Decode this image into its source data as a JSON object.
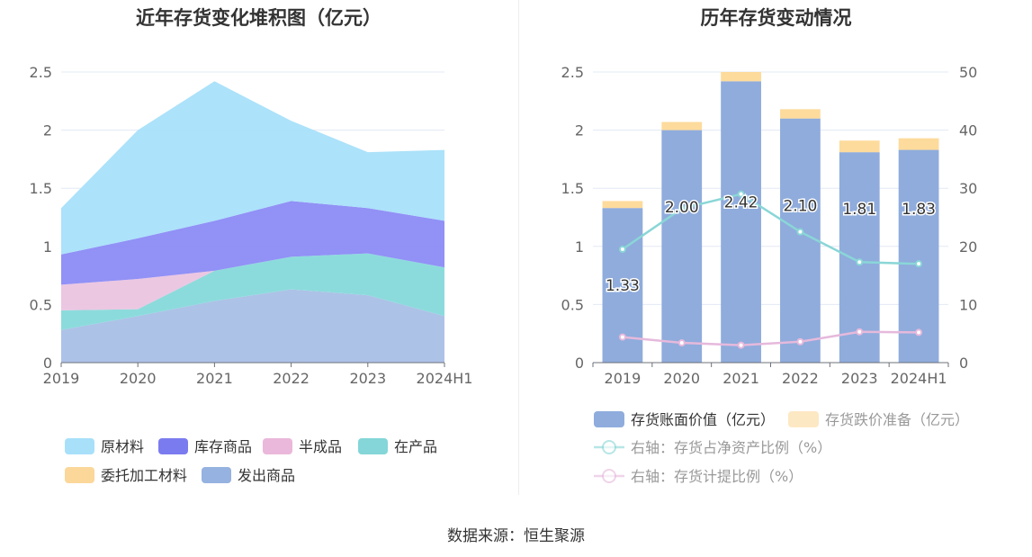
{
  "footer": {
    "source": "数据来源：恒生聚源"
  },
  "chart_data": [
    {
      "type": "area",
      "stacked": true,
      "title": "近年存货变化堆积图（亿元）",
      "categories": [
        "2019",
        "2020",
        "2021",
        "2022",
        "2023",
        "2024H1"
      ],
      "yticks": [
        "0",
        "0.5",
        "1",
        "1.5",
        "2",
        "2.5"
      ],
      "ylim": [
        0,
        2.5
      ],
      "grid": true,
      "legend_position": "bottom",
      "series": [
        {
          "name": "发出商品",
          "color": "#A9BFE6",
          "values": [
            0.28,
            0.4,
            0.53,
            0.63,
            0.58,
            0.4
          ]
        },
        {
          "name": "委托加工材料",
          "color": "#FBD79A",
          "values": [
            0.0,
            0.0,
            0.0,
            0.0,
            0.0,
            0.0
          ]
        },
        {
          "name": "在产品",
          "color": "#86D9DA",
          "values": [
            0.17,
            0.06,
            0.26,
            0.28,
            0.36,
            0.42
          ]
        },
        {
          "name": "半成品",
          "color": "#EAC4E0",
          "values": [
            0.22,
            0.26,
            0.0,
            0.0,
            0.0,
            0.0
          ]
        },
        {
          "name": "库存商品",
          "color": "#8B8BF6",
          "values": [
            0.26,
            0.35,
            0.43,
            0.48,
            0.39,
            0.4
          ]
        },
        {
          "name": "原材料",
          "color": "#A8E0FA",
          "values": [
            0.4,
            0.93,
            1.2,
            0.69,
            0.48,
            0.61
          ]
        }
      ],
      "legend": [
        {
          "name": "原材料",
          "color": "#A8E0FA"
        },
        {
          "name": "库存商品",
          "color": "#7B7BF0"
        },
        {
          "name": "半成品",
          "color": "#EAB8DA"
        },
        {
          "name": "在产品",
          "color": "#84D6D8"
        },
        {
          "name": "委托加工材料",
          "color": "#FBD79A"
        },
        {
          "name": "发出商品",
          "color": "#95B2E0"
        }
      ]
    },
    {
      "type": "bar",
      "title": "历年存货变动情况",
      "categories": [
        "2019",
        "2020",
        "2021",
        "2022",
        "2023",
        "2024H1"
      ],
      "yticks_left": [
        "0",
        "0.5",
        "1",
        "1.5",
        "2",
        "2.5"
      ],
      "yticks_right": [
        "0",
        "10",
        "20",
        "30",
        "40",
        "50"
      ],
      "ylim_left": [
        0,
        2.5
      ],
      "ylim_right": [
        0,
        50
      ],
      "grid": true,
      "legend_position": "bottom",
      "series": [
        {
          "name": "存货账面价值（亿元）",
          "type": "bar",
          "color": "#8FACDC",
          "values": [
            1.33,
            2.0,
            2.42,
            2.1,
            1.81,
            1.83
          ],
          "labels": [
            "1.33",
            "2.00",
            "2.42",
            "2.10",
            "1.81",
            "1.83"
          ]
        },
        {
          "name": "存货跌价准备（亿元）",
          "type": "bar",
          "color": "#FDDB9C",
          "values": [
            0.06,
            0.07,
            0.08,
            0.08,
            0.1,
            0.1
          ]
        },
        {
          "name": "右轴：存货占净资产比例（%）",
          "type": "line",
          "axis": "right",
          "color": "#8AD6D7",
          "values": [
            19.5,
            26.5,
            29.0,
            22.5,
            17.3,
            17.0
          ]
        },
        {
          "name": "右轴：存货计提比例（%）",
          "type": "line",
          "axis": "right",
          "color": "#E6B9DC",
          "values": [
            4.4,
            3.4,
            3.0,
            3.6,
            5.3,
            5.2
          ]
        }
      ]
    }
  ]
}
